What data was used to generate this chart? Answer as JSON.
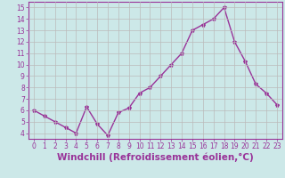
{
  "x": [
    0,
    1,
    2,
    3,
    4,
    5,
    6,
    7,
    8,
    9,
    10,
    11,
    12,
    13,
    14,
    15,
    16,
    17,
    18,
    19,
    20,
    21,
    22,
    23
  ],
  "y": [
    6.0,
    5.5,
    5.0,
    4.5,
    4.0,
    6.3,
    4.8,
    3.8,
    5.8,
    6.2,
    7.5,
    8.0,
    9.0,
    10.0,
    11.0,
    13.0,
    13.5,
    14.0,
    15.0,
    12.0,
    10.3,
    8.3,
    7.5,
    6.5
  ],
  "line_color": "#993399",
  "marker": "*",
  "marker_size": 3,
  "background_color": "#cce8e8",
  "grid_color": "#bbbbbb",
  "xlabel": "Windchill (Refroidissement éolien,°C)",
  "xlabel_color": "#993399",
  "ylim": [
    3.5,
    15.5
  ],
  "xlim": [
    -0.5,
    23.5
  ],
  "yticks": [
    4,
    5,
    6,
    7,
    8,
    9,
    10,
    11,
    12,
    13,
    14,
    15
  ],
  "xticks": [
    0,
    1,
    2,
    3,
    4,
    5,
    6,
    7,
    8,
    9,
    10,
    11,
    12,
    13,
    14,
    15,
    16,
    17,
    18,
    19,
    20,
    21,
    22,
    23
  ],
  "tick_color": "#993399",
  "tick_label_fontsize": 5.5,
  "xlabel_fontsize": 7.5,
  "line_width": 1.0
}
